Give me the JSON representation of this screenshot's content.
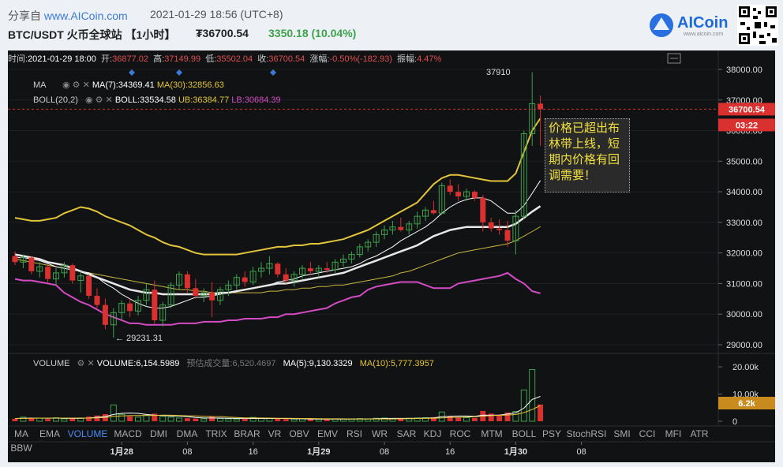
{
  "header": {
    "share_prefix": "分享自",
    "share_site": "www.AICoin.com",
    "timestamp": "2021-01-29 18:56 (UTC+8)",
    "pair_label": "BTC/USDT 火币全球站 【1小时】",
    "price": "₮36700.54",
    "change": "3350.18 (10.04%)",
    "logo_text": "AICoin",
    "logo_sub": "www.aicoin.com"
  },
  "ohlc_bar": {
    "time_label": "时间:",
    "time_value": "2021-01-29 18:00",
    "open_label": "开:",
    "open_value": "36877.02",
    "high_label": "高:",
    "high_value": "37149.99",
    "low_label": "低:",
    "low_value": "35502.04",
    "close_label": "收:",
    "close_value": "36700.54",
    "chg_label": "涨幅:",
    "chg_value": "-0.50%(-182.93)",
    "amp_label": "振幅:",
    "amp_value": "4.47%"
  },
  "indicators": {
    "ma_name": "MA",
    "ma7": "MA(7):34369.41",
    "ma30": "MA(30):32856.63",
    "boll_name": "BOLL(20,2)",
    "boll": "BOLL:33534.58",
    "ub": "UB:36384.77",
    "lb": "LB:30684.39"
  },
  "volume_bar": {
    "name": "VOLUME",
    "volume": "VOLUME:6,154.5989",
    "est": "预估成交量:6,520.4697",
    "ma5": "MA(5):9,130.3329",
    "ma10": "MA(10):5,777.3957"
  },
  "annotation": "价格已超出布林带上线，短期内价格有回调需要！",
  "markers": {
    "high": "37910",
    "low": "← 29231.31"
  },
  "price_tag": "36700.54",
  "countdown": "03:22",
  "volume_tag": "6.2k",
  "toolbar": [
    "MA",
    "EMA",
    "VOLUME",
    "MACD",
    "DMI",
    "DMA",
    "TRIX",
    "BRAR",
    "VR",
    "OBV",
    "EMV",
    "RSI",
    "WR",
    "SAR",
    "KDJ",
    "ROC",
    "MTM",
    "BOLL",
    "PSY",
    "StochRSI",
    "SMI",
    "CCI",
    "MFI",
    "ATR",
    "BBW"
  ],
  "toolbar_active": "VOLUME",
  "colors": {
    "up": "#3ea14b",
    "down": "#d93030",
    "boll_mid": "#e8e8e8",
    "boll_band_up": "#e3c53a",
    "boll_band_low": "#d44bc4",
    "ma7": "#ffffff",
    "ma30": "#c9b640"
  },
  "chart_data": {
    "type": "candlestick",
    "x_ticks": [
      "1月28",
      "08",
      "16",
      "1月29",
      "08",
      "16",
      "1月30",
      "08"
    ],
    "y_ticks": [
      "38000.00",
      "37000.00",
      "36000.00",
      "35000.00",
      "34000.00",
      "33000.00",
      "32000.00",
      "31000.00",
      "30000.00",
      "29000.00"
    ],
    "ylim": [
      28900,
      38400
    ],
    "vol_ticks": [
      "20.00k",
      "10.00k",
      "0"
    ],
    "vol_max": 22000,
    "candles": [
      [
        31900,
        32050,
        31600,
        31700
      ],
      [
        31700,
        31950,
        31500,
        31850
      ],
      [
        31850,
        31900,
        31300,
        31400
      ],
      [
        31400,
        31700,
        31200,
        31550
      ],
      [
        31550,
        31600,
        31050,
        31150
      ],
      [
        31150,
        31500,
        30950,
        31350
      ],
      [
        31350,
        31700,
        31200,
        31600
      ],
      [
        31600,
        31650,
        31000,
        31100
      ],
      [
        31100,
        31400,
        30700,
        31250
      ],
      [
        31250,
        31300,
        30500,
        30600
      ],
      [
        30600,
        30850,
        30200,
        30300
      ],
      [
        30300,
        30500,
        29500,
        29650
      ],
      [
        29650,
        30200,
        29231,
        30050
      ],
      [
        30050,
        30450,
        29800,
        30350
      ],
      [
        30350,
        30500,
        29900,
        30100
      ],
      [
        30100,
        30600,
        29950,
        30450
      ],
      [
        30450,
        31000,
        30300,
        30800
      ],
      [
        30800,
        31100,
        29700,
        29800
      ],
      [
        29800,
        30400,
        29600,
        30300
      ],
      [
        30300,
        31050,
        30200,
        30950
      ],
      [
        30950,
        31400,
        30800,
        31300
      ],
      [
        31300,
        31400,
        30700,
        30850
      ],
      [
        30850,
        31150,
        30500,
        30600
      ],
      [
        30600,
        30850,
        30400,
        30700
      ],
      [
        30700,
        31050,
        29900,
        30450
      ],
      [
        30450,
        30900,
        30300,
        30800
      ],
      [
        30800,
        31100,
        30600,
        30950
      ],
      [
        30950,
        31300,
        30800,
        31200
      ],
      [
        31200,
        31400,
        30900,
        31050
      ],
      [
        31050,
        31550,
        30950,
        31400
      ],
      [
        31400,
        31700,
        31200,
        31500
      ],
      [
        31500,
        31900,
        31300,
        31650
      ],
      [
        31650,
        31700,
        31200,
        31300
      ],
      [
        31300,
        31500,
        31000,
        31100
      ],
      [
        31100,
        31400,
        30900,
        31300
      ],
      [
        31300,
        31600,
        31150,
        31500
      ],
      [
        31500,
        31700,
        31300,
        31400
      ],
      [
        31400,
        31600,
        31200,
        31500
      ],
      [
        31500,
        31700,
        31350,
        31450
      ],
      [
        31450,
        31800,
        31350,
        31700
      ],
      [
        31700,
        31950,
        31550,
        31800
      ],
      [
        31800,
        32050,
        31650,
        31950
      ],
      [
        31950,
        32300,
        31850,
        32200
      ],
      [
        32200,
        32450,
        32050,
        32350
      ],
      [
        32350,
        32700,
        32200,
        32600
      ],
      [
        32600,
        32900,
        32450,
        32750
      ],
      [
        32750,
        33050,
        32600,
        32850
      ],
      [
        32850,
        33150,
        32700,
        32750
      ],
      [
        32750,
        33050,
        32600,
        32950
      ],
      [
        32950,
        33350,
        32800,
        33200
      ],
      [
        33200,
        33500,
        33050,
        33400
      ],
      [
        33400,
        33700,
        33250,
        33300
      ],
      [
        33300,
        34300,
        33250,
        34200
      ],
      [
        34200,
        34400,
        33900,
        34000
      ],
      [
        34000,
        34250,
        33700,
        33850
      ],
      [
        33850,
        34100,
        33700,
        34000
      ],
      [
        34000,
        34050,
        33700,
        33800
      ],
      [
        33800,
        33900,
        32700,
        33000
      ],
      [
        33000,
        33150,
        32700,
        32800
      ],
      [
        32800,
        33100,
        32600,
        32750
      ],
      [
        32750,
        33050,
        32200,
        32400
      ],
      [
        32400,
        33400,
        31950,
        33200
      ],
      [
        33200,
        36000,
        33100,
        35900
      ],
      [
        35900,
        37910,
        35500,
        36880
      ],
      [
        36880,
        37150,
        35502,
        36700
      ]
    ],
    "boll_ub": [
      33150,
      33100,
      33050,
      33050,
      33100,
      33150,
      33300,
      33400,
      33500,
      33450,
      33350,
      33200,
      33100,
      33000,
      32900,
      32750,
      32600,
      32500,
      32350,
      32250,
      32200,
      32100,
      32000,
      31950,
      31950,
      31950,
      31950,
      31950,
      32000,
      32050,
      32100,
      32150,
      32200,
      32200,
      32250,
      32250,
      32300,
      32300,
      32350,
      32400,
      32450,
      32550,
      32650,
      32750,
      32900,
      33050,
      33200,
      33350,
      33500,
      33650,
      33950,
      34250,
      34450,
      34550,
      34550,
      34500,
      34450,
      34400,
      34350,
      34350,
      34350,
      34600,
      35300,
      36000,
      36400
    ],
    "boll_mid": [
      31950,
      31900,
      31850,
      31800,
      31700,
      31650,
      31600,
      31500,
      31400,
      31300,
      31200,
      31100,
      31000,
      30900,
      30800,
      30750,
      30700,
      30700,
      30650,
      30650,
      30650,
      30650,
      30650,
      30650,
      30650,
      30700,
      30700,
      30750,
      30800,
      30850,
      30900,
      30950,
      31000,
      31000,
      31050,
      31100,
      31150,
      31200,
      31250,
      31300,
      31350,
      31450,
      31550,
      31650,
      31750,
      31850,
      31950,
      32050,
      32150,
      32250,
      32400,
      32550,
      32650,
      32750,
      32800,
      32850,
      32850,
      32850,
      32850,
      32850,
      32850,
      32950,
      33150,
      33350,
      33530
    ],
    "boll_lb": [
      31150,
      31100,
      31100,
      31050,
      31000,
      30950,
      30700,
      30550,
      30400,
      30300,
      30150,
      30000,
      29900,
      29800,
      29700,
      29700,
      29650,
      29650,
      29650,
      29650,
      29700,
      29700,
      29700,
      29750,
      29750,
      29750,
      29800,
      29800,
      29850,
      29850,
      29850,
      29900,
      29900,
      30000,
      30000,
      30050,
      30100,
      30150,
      30200,
      30350,
      30450,
      30550,
      30600,
      30800,
      30900,
      30950,
      31000,
      31050,
      31050,
      31050,
      30950,
      30850,
      30850,
      30850,
      31000,
      31050,
      31100,
      31150,
      31200,
      31250,
      31350,
      31150,
      31000,
      30750,
      30680
    ],
    "ma7": [
      31850,
      31850,
      31800,
      31750,
      31650,
      31550,
      31500,
      31450,
      31400,
      31350,
      31200,
      31000,
      30850,
      30650,
      30500,
      30350,
      30250,
      30200,
      30200,
      30250,
      30350,
      30450,
      30550,
      30550,
      30600,
      30650,
      30700,
      30750,
      30800,
      30850,
      30900,
      30950,
      31050,
      31100,
      31150,
      31250,
      31300,
      31350,
      31400,
      31450,
      31500,
      31550,
      31650,
      31800,
      31900,
      32050,
      32200,
      32400,
      32550,
      32700,
      32850,
      33050,
      33300,
      33500,
      33650,
      33750,
      33800,
      33800,
      33700,
      33500,
      33300,
      33300,
      33550,
      33950,
      34370
    ],
    "ma30": [
      31800,
      31750,
      31700,
      31650,
      31600,
      31550,
      31500,
      31450,
      31400,
      31350,
      31300,
      31250,
      31200,
      31150,
      31100,
      31050,
      31000,
      30950,
      30900,
      30850,
      30800,
      30800,
      30750,
      30750,
      30700,
      30700,
      30700,
      30700,
      30700,
      30700,
      30700,
      30750,
      30750,
      30800,
      30800,
      30850,
      30850,
      30900,
      30900,
      30950,
      30950,
      31000,
      31050,
      31100,
      31150,
      31200,
      31250,
      31350,
      31400,
      31500,
      31600,
      31700,
      31800,
      31900,
      32000,
      32050,
      32100,
      32150,
      32200,
      32250,
      32300,
      32400,
      32550,
      32700,
      32860
    ],
    "volumes": [
      900,
      1500,
      1200,
      1100,
      800,
      1300,
      900,
      1000,
      1200,
      1700,
      2100,
      2600,
      6000,
      2500,
      1800,
      1500,
      2200,
      2800,
      1800,
      1500,
      1200,
      1100,
      1000,
      900,
      1800,
      1000,
      900,
      800,
      900,
      1400,
      1100,
      1000,
      900,
      800,
      800,
      900,
      700,
      800,
      700,
      900,
      800,
      900,
      1000,
      900,
      1100,
      1200,
      1000,
      1000,
      1100,
      1200,
      1300,
      1500,
      3400,
      1800,
      1400,
      1300,
      1200,
      3800,
      2800,
      2300,
      3200,
      3600,
      11500,
      19000,
      6150
    ],
    "vol_ma5": [
      1000,
      1100,
      1150,
      1150,
      1100,
      1150,
      1050,
      1050,
      1050,
      1200,
      1450,
      1700,
      2500,
      2900,
      3000,
      2900,
      2500,
      2200,
      2100,
      1950,
      1900,
      1700,
      1400,
      1200,
      1200,
      1150,
      1100,
      1050,
      1050,
      1000,
      1000,
      1000,
      1000,
      1000,
      900,
      900,
      850,
      800,
      800,
      800,
      800,
      800,
      850,
      850,
      950,
      1000,
      1050,
      1050,
      1050,
      1100,
      1150,
      1250,
      1650,
      1850,
      1900,
      1900,
      1800,
      2250,
      2200,
      2300,
      2650,
      3100,
      4800,
      8000,
      9130
    ],
    "vol_ma10": [
      1000,
      1050,
      1100,
      1150,
      1150,
      1150,
      1150,
      1150,
      1150,
      1150,
      1250,
      1350,
      1800,
      1950,
      2050,
      2100,
      2100,
      2150,
      2250,
      2200,
      2100,
      2000,
      1950,
      1850,
      1750,
      1700,
      1550,
      1400,
      1250,
      1250,
      1200,
      1150,
      1100,
      1100,
      1050,
      1000,
      1000,
      950,
      900,
      900,
      900,
      850,
      850,
      850,
      850,
      850,
      850,
      900,
      950,
      1000,
      1050,
      1100,
      1250,
      1350,
      1450,
      1550,
      1650,
      1850,
      2050,
      2200,
      2300,
      2450,
      3200,
      4300,
      5777
    ]
  }
}
